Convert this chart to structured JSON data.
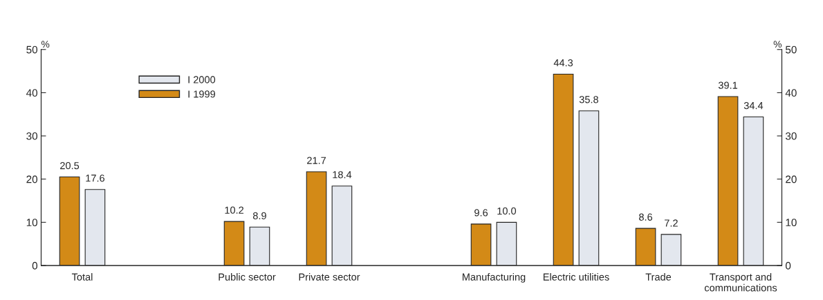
{
  "chart_data": {
    "type": "bar",
    "categories": [
      "Total",
      null,
      "Public sector",
      "Private sector",
      null,
      "Manufacturing",
      "Electric utilities",
      "Trade",
      "Transport and\ncommunications"
    ],
    "series": [
      {
        "name": "I 1999",
        "color": "#d38a17",
        "values": [
          20.5,
          null,
          10.2,
          21.7,
          null,
          9.6,
          44.3,
          8.6,
          39.1
        ],
        "value_labels": [
          "20.5",
          null,
          "10.2",
          "21.7",
          null,
          "9.6",
          "44.3",
          "8.6",
          "39.1"
        ]
      },
      {
        "name": "I 2000",
        "color": "#e3e7ee",
        "values": [
          17.6,
          null,
          8.9,
          18.4,
          null,
          10,
          35.8,
          7.2,
          34.4
        ],
        "value_labels": [
          "17.6",
          null,
          "8.9",
          "18.4",
          null,
          "10.0",
          "35.8",
          "7.2",
          "34.4"
        ]
      }
    ],
    "ylabel": "%",
    "y2label": "%",
    "ylim": [
      0,
      50
    ],
    "yticks": [
      0,
      10,
      20,
      30,
      40,
      50
    ],
    "y2lim": [
      0,
      50
    ],
    "y2ticks": [
      0,
      10,
      20,
      30,
      40,
      50
    ],
    "legend": "top left",
    "grid": false
  }
}
